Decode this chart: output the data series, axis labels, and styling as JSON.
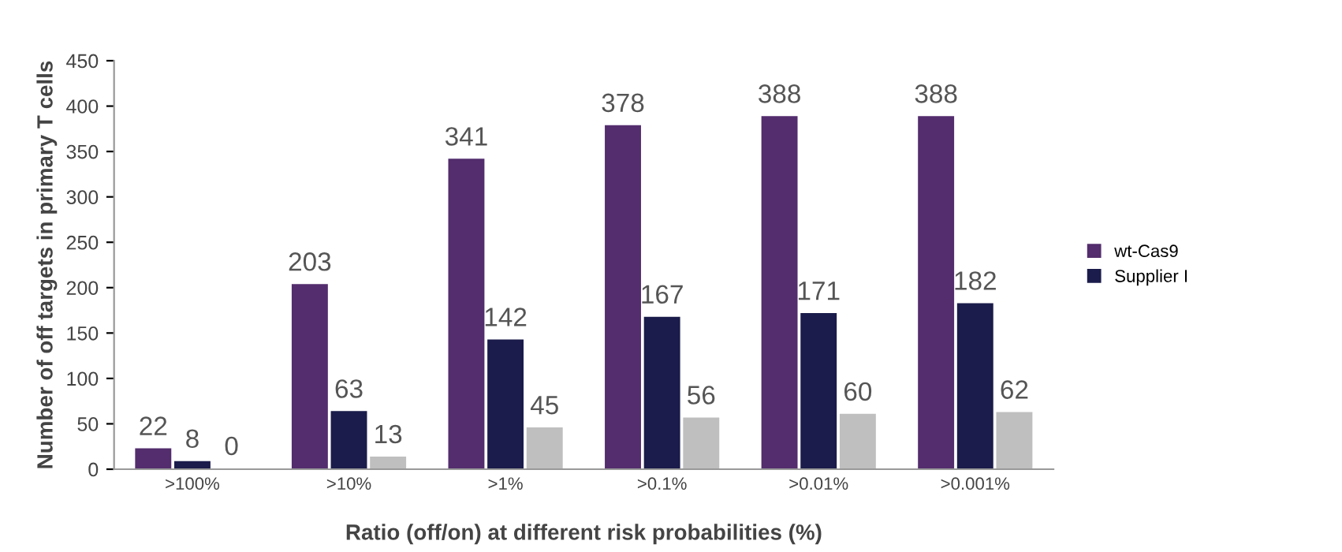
{
  "chart_data": {
    "type": "bar",
    "xlabel": "Ratio (off/on) at different risk probabilities (%)",
    "ylabel": "Number of off targets in primary T cells",
    "categories": [
      ">100%",
      ">10%",
      ">1%",
      ">0.1%",
      ">0.01%",
      ">0.001%"
    ],
    "series": [
      {
        "name": "wt-Cas9",
        "color": "#532d6d",
        "values": [
          22,
          203,
          341,
          378,
          388,
          388
        ]
      },
      {
        "name": "Supplier I",
        "color": "#1b1c4b",
        "values": [
          8,
          63,
          142,
          167,
          171,
          182
        ]
      },
      {
        "color": "#bfbfbf",
        "values": [
          0,
          13,
          45,
          56,
          60,
          62
        ]
      }
    ],
    "ylim": [
      0,
      450
    ],
    "yticks": [
      0,
      50,
      100,
      150,
      200,
      250,
      300,
      350,
      400,
      450
    ],
    "data_labels": true,
    "legend": "right",
    "grid": false
  }
}
